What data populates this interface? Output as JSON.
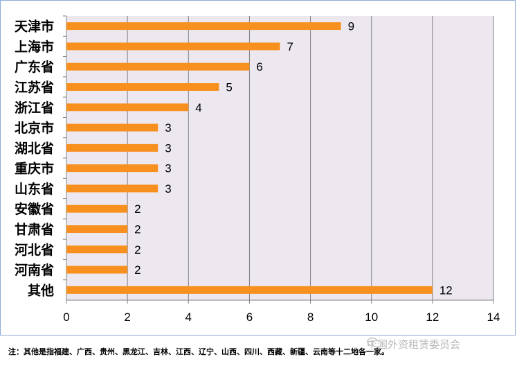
{
  "chart_data": {
    "type": "bar",
    "orientation": "horizontal",
    "categories": [
      "天津市",
      "上海市",
      "广东省",
      "江苏省",
      "浙江省",
      "北京市",
      "湖北省",
      "重庆市",
      "山东省",
      "安徽省",
      "甘肃省",
      "河北省",
      "河南省",
      "其他"
    ],
    "values": [
      9,
      7,
      6,
      5,
      4,
      3,
      3,
      3,
      3,
      2,
      2,
      2,
      2,
      12
    ],
    "xlim": [
      0,
      14
    ],
    "xticks": [
      0,
      2,
      4,
      6,
      8,
      10,
      12,
      14
    ],
    "grid": true,
    "legend": "none",
    "title": "",
    "xlabel": "",
    "ylabel": ""
  },
  "colors": {
    "bar": "#f7901e",
    "plot_bg": "#ede8f0",
    "grid": "#7f7f7f",
    "frame": "#8eaad6"
  },
  "footnote": "注：其他是指福建、广西、贵州、黑龙江、吉林、江西、辽宁、山西、四川、西藏、新疆、云南等十二地各一家。",
  "watermark": {
    "text": "中国外资租赁委员会",
    "icon": "wechat-icon"
  }
}
